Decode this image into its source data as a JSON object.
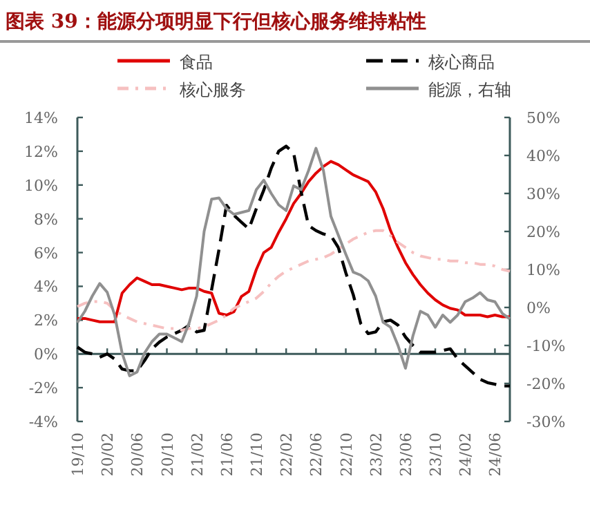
{
  "chart_data": {
    "type": "line",
    "title": "图表 39：能源分项明显下行但核心服务维持粘性",
    "categories": [
      "19/10",
      null,
      null,
      null,
      "20/02",
      null,
      null,
      null,
      "20/06",
      null,
      null,
      null,
      "20/10",
      null,
      null,
      null,
      "21/02",
      null,
      null,
      null,
      "21/06",
      null,
      null,
      null,
      "21/10",
      null,
      null,
      null,
      "22/02",
      null,
      null,
      null,
      "22/06",
      null,
      null,
      null,
      "22/10",
      null,
      null,
      null,
      "23/02",
      null,
      null,
      null,
      "23/06",
      null,
      null,
      null,
      "23/10",
      null,
      null,
      null,
      "24/02",
      null,
      null,
      null,
      "24/06",
      null,
      null
    ],
    "series": [
      {
        "name": "食品",
        "color": "#e00000",
        "line_style": "solid",
        "values": [
          2.1,
          2.1,
          2.0,
          1.9,
          1.9,
          1.9,
          3.6,
          4.1,
          4.5,
          4.3,
          4.1,
          4.1,
          4.0,
          3.9,
          3.8,
          3.9,
          3.9,
          3.7,
          3.6,
          2.4,
          2.3,
          2.5,
          3.4,
          3.7,
          5.0,
          6.0,
          6.3,
          7.2,
          8.0,
          8.9,
          9.5,
          10.2,
          10.7,
          11.1,
          11.4,
          11.2,
          10.9,
          10.6,
          10.4,
          10.2,
          9.6,
          8.6,
          7.3,
          6.3,
          5.4,
          4.7,
          4.1,
          3.6,
          3.2,
          2.9,
          2.7,
          2.6,
          2.3,
          2.3,
          2.3,
          2.2,
          2.3,
          2.2,
          2.2
        ]
      },
      {
        "name": "核心商品",
        "color": "#000000",
        "line_style": "dashed",
        "values": [
          0.4,
          0.1,
          0.0,
          -0.2,
          0.0,
          -0.3,
          -0.9,
          -1.0,
          -1.0,
          -0.4,
          0.3,
          0.7,
          1.0,
          1.2,
          1.4,
          1.7,
          1.3,
          1.4,
          3.8,
          6.2,
          8.8,
          8.2,
          7.8,
          7.4,
          8.6,
          9.7,
          11.0,
          12.0,
          12.3,
          11.9,
          9.6,
          7.6,
          7.3,
          7.1,
          7.0,
          6.3,
          4.8,
          3.5,
          1.8,
          1.2,
          1.3,
          1.9,
          2.0,
          1.7,
          1.0,
          0.5,
          0.1,
          0.1,
          0.1,
          0.2,
          0.3,
          -0.3,
          -0.7,
          -1.1,
          -1.5,
          -1.7,
          -1.8,
          -1.9,
          -1.9
        ]
      },
      {
        "name": "核心服务",
        "color": "#f6c0c0",
        "line_style": "dashdot",
        "values": [
          2.8,
          3.0,
          3.1,
          3.1,
          3.0,
          2.6,
          2.3,
          2.1,
          1.9,
          1.8,
          1.7,
          1.6,
          1.5,
          1.5,
          1.4,
          1.5,
          1.5,
          1.6,
          1.8,
          2.0,
          2.3,
          2.7,
          2.9,
          3.1,
          3.3,
          3.7,
          4.2,
          4.6,
          4.9,
          5.1,
          5.3,
          5.5,
          5.6,
          5.7,
          5.9,
          6.2,
          6.5,
          6.8,
          7.0,
          7.2,
          7.3,
          7.3,
          7.0,
          6.6,
          6.3,
          6.0,
          5.8,
          5.7,
          5.6,
          5.6,
          5.5,
          5.5,
          5.4,
          5.4,
          5.3,
          5.3,
          5.2,
          5.0,
          4.9
        ]
      },
      {
        "name": "能源，右轴",
        "color": "#909090",
        "line_style": "solid",
        "axis": "y2",
        "values": [
          -4,
          -1,
          3,
          6.3,
          4,
          -2,
          -12,
          -18,
          -17,
          -12,
          -9,
          -7,
          -7,
          -8,
          -9,
          -4,
          3,
          20,
          28.5,
          28.8,
          26,
          24.5,
          25,
          25.5,
          31,
          33.5,
          30,
          27,
          25.5,
          32,
          31,
          36,
          41.9,
          36,
          24,
          19,
          14,
          9.3,
          8.5,
          7,
          3,
          -3.9,
          -5.2,
          -10,
          -16,
          -7.5,
          -1,
          -2,
          -5.2,
          -2,
          -3.9,
          -2,
          1.5,
          2.5,
          3.9,
          2,
          1.5,
          -1.6,
          -3
        ]
      }
    ],
    "ylim": [
      -4,
      14
    ],
    "yticks": [
      {
        "value": -4,
        "label": "-4%"
      },
      {
        "value": -2,
        "label": "-2%"
      },
      {
        "value": 0,
        "label": "0%"
      },
      {
        "value": 2,
        "label": "2%"
      },
      {
        "value": 4,
        "label": "4%"
      },
      {
        "value": 6,
        "label": "6%"
      },
      {
        "value": 8,
        "label": "8%"
      },
      {
        "value": 10,
        "label": "10%"
      },
      {
        "value": 12,
        "label": "12%"
      },
      {
        "value": 14,
        "label": "14%"
      }
    ],
    "y2lim": [
      -30,
      50
    ],
    "y2ticks": [
      {
        "value": -30,
        "label": "-30%"
      },
      {
        "value": -20,
        "label": "-20%"
      },
      {
        "value": -10,
        "label": "-10%"
      },
      {
        "value": 0,
        "label": "0%"
      },
      {
        "value": 10,
        "label": "10%"
      },
      {
        "value": 20,
        "label": "20%"
      },
      {
        "value": 30,
        "label": "30%"
      },
      {
        "value": 40,
        "label": "40%"
      },
      {
        "value": 50,
        "label": "50%"
      }
    ],
    "legend": "top"
  }
}
